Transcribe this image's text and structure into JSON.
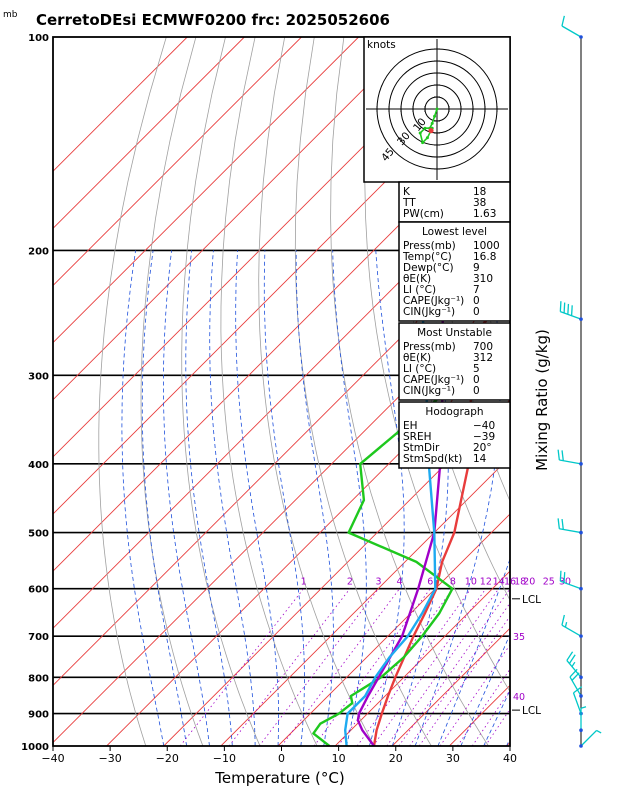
{
  "header": {
    "pressure_unit": "mb",
    "title": "CerretoDEsi ECMWF0200  frc: 2025052606"
  },
  "axes": {
    "xlabel": "Temperature (°C)",
    "right_label": "Mixing Ratio (g/kg)",
    "x_ticks": [
      "−40",
      "−30",
      "−20",
      "−10",
      "0",
      "10",
      "20",
      "30",
      "40"
    ],
    "pressure_ticks": [
      "100",
      "200",
      "300",
      "400",
      "500",
      "600",
      "700",
      "800",
      "900",
      "1000"
    ]
  },
  "mixing_ratio_labels": [
    "1",
    "2",
    "3",
    "4",
    "6",
    "8",
    "10",
    "12",
    "14",
    "16",
    "18",
    "20",
    "25",
    "30",
    "35",
    "40"
  ],
  "lcl_label": "LCL",
  "hodograph": {
    "units": "knots",
    "ring_labels": [
      "10",
      "30",
      "45"
    ]
  },
  "indices": {
    "top": [
      {
        "label": "K",
        "value": "18"
      },
      {
        "label": "TT",
        "value": "38"
      },
      {
        "label": "PW(cm)",
        "value": "1.63"
      }
    ],
    "lowest": {
      "header": "Lowest level",
      "rows": [
        {
          "label": "Press(mb)",
          "value": "1000"
        },
        {
          "label": "Temp(°C)",
          "value": "16.8"
        },
        {
          "label": "Dewp(°C)",
          "value": "9"
        },
        {
          "label": "θE(K)",
          "value": "310"
        },
        {
          "label": "LI (°C)",
          "value": "7"
        },
        {
          "label": "CAPE(Jkg⁻¹)",
          "value": "0"
        },
        {
          "label": "CIN(Jkg⁻¹)",
          "value": "0"
        }
      ]
    },
    "most_unstable": {
      "header": "Most Unstable",
      "rows": [
        {
          "label": "Press(mb)",
          "value": "700"
        },
        {
          "label": "θE(K)",
          "value": "312"
        },
        {
          "label": "LI (°C)",
          "value": "5"
        },
        {
          "label": "CAPE(Jkg⁻¹)",
          "value": "0"
        },
        {
          "label": "CIN(Jkg⁻¹)",
          "value": "0"
        }
      ]
    },
    "hodo": {
      "header": "Hodograph",
      "rows": [
        {
          "label": "EH",
          "value": "−40"
        },
        {
          "label": "SREH",
          "value": "−39"
        },
        {
          "label": "StmDir",
          "value": "20°"
        },
        {
          "label": "StmSpd(kt)",
          "value": "14"
        }
      ]
    }
  },
  "colors": {
    "temperature": "#e83c3c",
    "dewpoint": "#1ec81e",
    "parcel": "#a000c8",
    "wetbulb": "#1eaaf0",
    "isotherm": "#e83c3c",
    "dry_adiabat": "#a0a0a0",
    "moist_adiabat": "#1e50dc",
    "mixing_ratio": "#a000c8",
    "wind": "#00c8c8"
  },
  "chart_data": {
    "type": "line",
    "title": "CerretoDEsi ECMWF0200  frc: 2025052606",
    "xlabel": "Temperature (°C)",
    "ylabel": "mb",
    "x_range": [
      -40,
      40
    ],
    "p_range": [
      1000,
      100
    ],
    "y_scale": "log",
    "series": [
      {
        "key": "temperature",
        "points": [
          [
            1000,
            16.8
          ],
          [
            950,
            14.5
          ],
          [
            900,
            12.5
          ],
          [
            850,
            10.5
          ],
          [
            800,
            8.5
          ],
          [
            700,
            4.5
          ],
          [
            650,
            2.5
          ],
          [
            600,
            0.2
          ],
          [
            550,
            -3.5
          ],
          [
            500,
            -6.5
          ],
          [
            400,
            -16
          ],
          [
            300,
            -31
          ],
          [
            270,
            -38
          ],
          [
            250,
            -38
          ],
          [
            200,
            -33
          ],
          [
            150,
            -24
          ],
          [
            100,
            -14
          ]
        ]
      },
      {
        "key": "dewpoint",
        "points": [
          [
            1000,
            9
          ],
          [
            960,
            4
          ],
          [
            930,
            3.5
          ],
          [
            900,
            5
          ],
          [
            870,
            5.5
          ],
          [
            850,
            4
          ],
          [
            800,
            6
          ],
          [
            750,
            6.5
          ],
          [
            700,
            6
          ],
          [
            650,
            5
          ],
          [
            600,
            3
          ],
          [
            550,
            -8
          ],
          [
            500,
            -25
          ],
          [
            450,
            -28
          ],
          [
            400,
            -35
          ],
          [
            300,
            -32
          ],
          [
            200,
            -31
          ],
          [
            150,
            -28
          ],
          [
            120,
            -23
          ],
          [
            100,
            -22
          ]
        ]
      },
      {
        "key": "parcel",
        "points": [
          [
            1000,
            16.8
          ],
          [
            950,
            12
          ],
          [
            920,
            9.5
          ],
          [
            900,
            8.5
          ],
          [
            850,
            7
          ],
          [
            700,
            2.5
          ],
          [
            600,
            -3
          ],
          [
            500,
            -10
          ],
          [
            400,
            -21
          ],
          [
            300,
            -36
          ],
          [
            200,
            -58
          ],
          [
            150,
            -75
          ],
          [
            120,
            -90
          ],
          [
            110,
            -96
          ]
        ]
      },
      {
        "key": "wetbulb",
        "points": [
          [
            1000,
            12
          ],
          [
            950,
            9
          ],
          [
            900,
            6.5
          ],
          [
            850,
            6.5
          ],
          [
            800,
            5
          ],
          [
            750,
            4
          ],
          [
            700,
            3.5
          ],
          [
            650,
            2
          ],
          [
            600,
            0
          ],
          [
            500,
            -10
          ],
          [
            400,
            -23
          ],
          [
            300,
            -39
          ],
          [
            200,
            -62
          ],
          [
            150,
            -79
          ],
          [
            120,
            -94
          ],
          [
            110,
            -99
          ]
        ]
      }
    ],
    "mixing_ratio_values": [
      1,
      2,
      3,
      4,
      6,
      8,
      10,
      12,
      14,
      16,
      18,
      20,
      25,
      30,
      35,
      40
    ],
    "winds": [
      {
        "p": 100,
        "dir": 300,
        "spd": 10
      },
      {
        "p": 250,
        "dir": 290,
        "spd": 40
      },
      {
        "p": 400,
        "dir": 280,
        "spd": 20
      },
      {
        "p": 500,
        "dir": 280,
        "spd": 20
      },
      {
        "p": 600,
        "dir": 290,
        "spd": 20
      },
      {
        "p": 700,
        "dir": 300,
        "spd": 15
      },
      {
        "p": 800,
        "dir": 320,
        "spd": 25
      },
      {
        "p": 850,
        "dir": 330,
        "spd": 20
      },
      {
        "p": 900,
        "dir": 340,
        "spd": 10
      },
      {
        "p": 950,
        "dir": 360,
        "spd": 5
      },
      {
        "p": 1000,
        "dir": 45,
        "spd": 5
      }
    ],
    "hodograph_points": [
      [
        0,
        0
      ],
      [
        -1,
        -3
      ],
      [
        -2,
        -6
      ],
      [
        -3,
        -8
      ],
      [
        -5,
        -8
      ],
      [
        -7,
        -10
      ],
      [
        -6,
        -14
      ],
      [
        -4,
        -12
      ],
      [
        -2,
        -8
      ]
    ],
    "hodograph_storm": [
      -2.5,
      -9
    ]
  }
}
